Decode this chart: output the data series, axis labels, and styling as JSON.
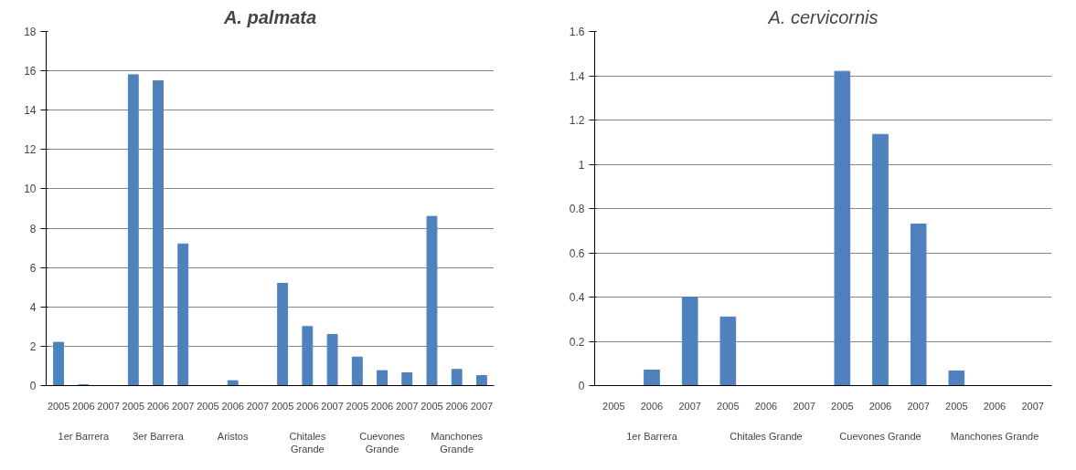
{
  "chart_data": [
    {
      "type": "bar",
      "title": "A. palmata",
      "categories": [
        "2005",
        "2006",
        "2007",
        "2005",
        "2006",
        "2007",
        "2005",
        "2006",
        "2007",
        "2005",
        "2006",
        "2007",
        "2005",
        "2006",
        "2007",
        "2005",
        "2006",
        "2007"
      ],
      "values": [
        2.2,
        0.05,
        0,
        15.8,
        15.5,
        7.2,
        0,
        0.25,
        0,
        5.2,
        3.0,
        2.6,
        1.45,
        0.76,
        0.65,
        8.6,
        0.82,
        0.51
      ],
      "color": "#4f81bd",
      "ylim": [
        0,
        18
      ],
      "yticks": [
        0,
        2,
        4,
        6,
        8,
        10,
        12,
        14,
        16,
        18
      ],
      "grid": "y",
      "annotations": [
        "1er Barrera",
        "3er Barrera",
        "Aristos",
        "Chitales Grande",
        "Cuevones Grande",
        "Manchones Grande"
      ]
    },
    {
      "type": "bar",
      "title": "A. cervicornis",
      "categories": [
        "2005",
        "2006",
        "2007",
        "2005",
        "2006",
        "2007",
        "2005",
        "2006",
        "2007",
        "2005",
        "2006",
        "2007"
      ],
      "values": [
        0,
        0.07,
        0.4,
        0.31,
        0,
        0,
        1.42,
        1.135,
        0.73,
        0.066,
        0,
        0
      ],
      "color": "#4f81bd",
      "ylim": [
        0,
        1.6
      ],
      "yticks": [
        0,
        0.2,
        0.4,
        0.6,
        0.8,
        1,
        1.2,
        1.4,
        1.6
      ],
      "grid": "y",
      "annotations": [
        "1er Barrera",
        "Chitales Grande",
        "Cuevones Grande",
        "Manchones Grande"
      ]
    }
  ]
}
